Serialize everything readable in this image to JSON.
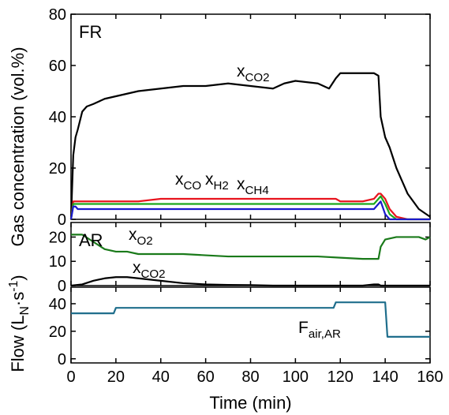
{
  "chart_data": [
    {
      "type": "line",
      "panel_label": "FR",
      "y_label": "Gas concentration (vol.%)",
      "x": [
        0,
        1,
        2,
        3,
        5,
        7,
        10,
        15,
        20,
        25,
        30,
        40,
        50,
        60,
        70,
        80,
        90,
        95,
        100,
        110,
        115,
        118,
        120,
        125,
        130,
        135,
        137,
        138,
        140,
        142,
        145,
        150,
        155,
        160
      ],
      "xlim": [
        0,
        160
      ],
      "xticks": [
        0,
        20,
        40,
        60,
        80,
        100,
        120,
        140,
        160
      ],
      "ylim": [
        0,
        80
      ],
      "yticks": [
        0,
        20,
        40,
        60,
        80
      ],
      "series": [
        {
          "label": {
            "text": "x",
            "sub": "CO2"
          },
          "color": "#000000",
          "values": [
            0,
            25,
            32,
            35,
            42,
            44,
            45,
            47,
            48,
            49,
            50,
            51,
            52,
            52,
            53,
            52,
            51,
            53,
            54,
            53,
            51,
            55,
            57,
            57,
            57,
            57,
            56,
            40,
            32,
            28,
            20,
            10,
            4,
            1
          ]
        },
        {
          "label": {
            "text": "x",
            "sub": "CO"
          },
          "color": "#e8141e",
          "values": [
            0,
            7,
            7,
            7,
            7,
            7,
            7,
            7,
            7,
            7,
            7,
            8,
            8,
            8,
            8,
            8,
            8,
            8,
            8,
            8,
            8,
            8,
            7,
            7,
            7,
            8,
            10,
            10,
            8,
            4,
            1,
            0,
            0,
            0
          ]
        },
        {
          "label": {
            "text": "x",
            "sub": "H2"
          },
          "color": "#1ca81c",
          "values": [
            0,
            6,
            6,
            6,
            6,
            6,
            6,
            6,
            6,
            6,
            6,
            6,
            6,
            6,
            6,
            6,
            6,
            6,
            6,
            6,
            6,
            6,
            6,
            6,
            6,
            6,
            8,
            9,
            6,
            2,
            0,
            0,
            0,
            0
          ]
        },
        {
          "label": {
            "text": "x",
            "sub": "CH4"
          },
          "color": "#1a1acc",
          "values": [
            0,
            5,
            5,
            4,
            4,
            4,
            4,
            4,
            4,
            4,
            4,
            4,
            4,
            4,
            4,
            4,
            4,
            4,
            4,
            4,
            4,
            4,
            4,
            4,
            4,
            4,
            6,
            7,
            2,
            0,
            0,
            0,
            0,
            0
          ]
        }
      ]
    },
    {
      "type": "line",
      "panel_label": "AR",
      "x": [
        0,
        5,
        10,
        15,
        20,
        25,
        30,
        40,
        50,
        60,
        70,
        80,
        90,
        100,
        110,
        120,
        130,
        135,
        137,
        138,
        140,
        145,
        150,
        155,
        158,
        160
      ],
      "xlim": [
        0,
        160
      ],
      "xticks": [
        0,
        20,
        40,
        60,
        80,
        100,
        120,
        140,
        160
      ],
      "ylim": [
        0,
        26
      ],
      "yticks": [
        0,
        10,
        20
      ],
      "series": [
        {
          "label": {
            "text": "x",
            "sub": "O2"
          },
          "color": "#1a7a1a",
          "values": [
            21,
            21,
            18,
            15,
            14,
            14,
            13,
            13,
            13,
            12.5,
            12,
            12,
            12,
            12,
            12,
            11.5,
            11,
            11,
            11,
            16,
            19,
            20,
            20,
            20,
            19,
            20
          ]
        },
        {
          "label": {
            "text": "x",
            "sub": "CO2"
          },
          "color": "#000000",
          "values": [
            0,
            0.5,
            2,
            3,
            3.5,
            3.5,
            3,
            2,
            1,
            0.5,
            0.3,
            0.2,
            0,
            0,
            0,
            0,
            0,
            0.5,
            0.5,
            0,
            0,
            0,
            0,
            0,
            0,
            0
          ]
        }
      ]
    },
    {
      "type": "line",
      "y_label": {
        "text": "Flow (L",
        "sub": "N",
        "mid": "·s",
        "sup": "-1",
        "end": ")"
      },
      "x_label": "Time (min)",
      "x": [
        0,
        19,
        20,
        117,
        118,
        140,
        141,
        160
      ],
      "xlim": [
        0,
        160
      ],
      "xticks": [
        0,
        20,
        40,
        60,
        80,
        100,
        120,
        140,
        160
      ],
      "ylim": [
        -3,
        52
      ],
      "yticks": [
        0,
        20,
        40
      ],
      "series": [
        {
          "label": {
            "text": "F",
            "sub": "air,AR"
          },
          "color": "#1f6e8c",
          "values": [
            33,
            33,
            37,
            37,
            41,
            41,
            16,
            16
          ]
        }
      ]
    }
  ]
}
